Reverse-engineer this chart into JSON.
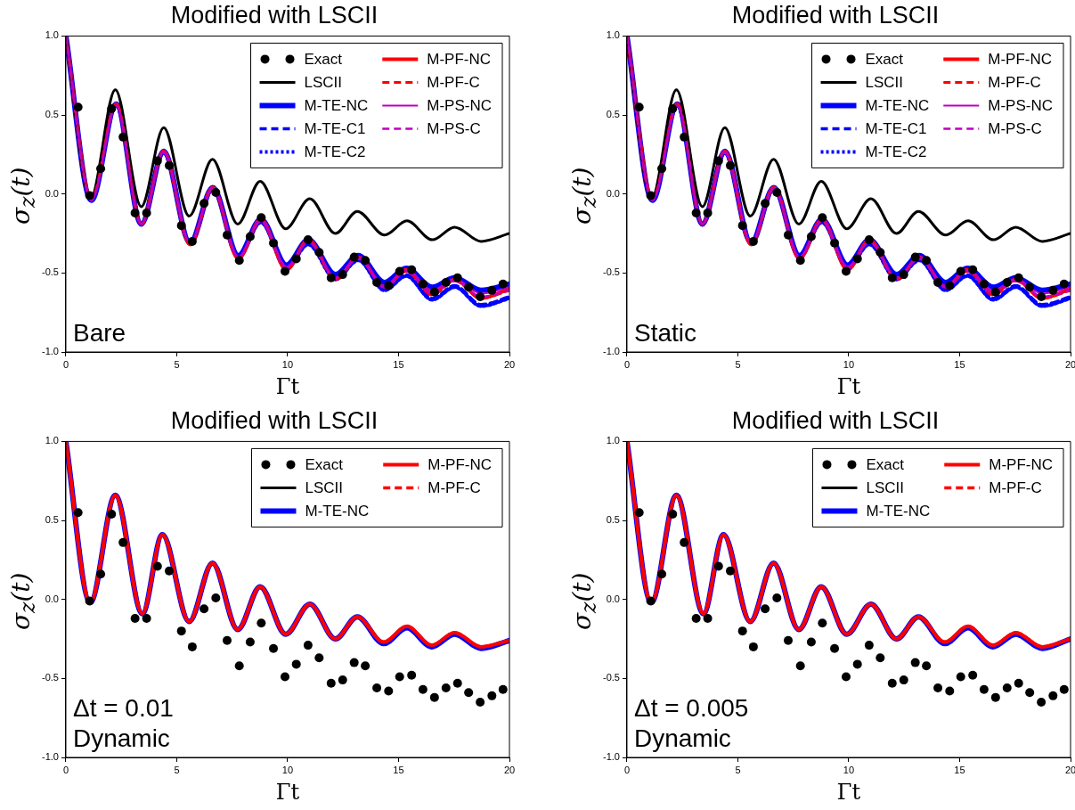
{
  "chart_data": [
    {
      "type": "line",
      "title": "Modified with LSCII",
      "xlabel": "Γt",
      "ylabel": "σ$_{z}$(t)",
      "xlim": [
        0,
        20
      ],
      "ylim": [
        -1,
        1
      ],
      "xticks": [
        0,
        5,
        10,
        15,
        20
      ],
      "yticks": [
        {
          "value": -1,
          "label": "-1.0"
        },
        {
          "value": -0.5,
          "label": "-0.5"
        },
        {
          "value": 0,
          "label": "0.0"
        },
        {
          "value": 0.5,
          "label": "0.5"
        },
        {
          "value": 1,
          "label": "1.0"
        }
      ],
      "grid": false,
      "legend": "top right",
      "annotations": [
        "Bare"
      ],
      "series": [
        {
          "name": "Exact",
          "type": "scatter",
          "marker": "circle",
          "color": "#000000",
          "x": [
            0.55,
            1.07,
            1.57,
            2.06,
            2.58,
            3.12,
            3.64,
            4.13,
            4.66,
            5.21,
            5.7,
            6.23,
            6.76,
            7.27,
            7.82,
            8.31,
            8.81,
            9.36,
            9.88,
            10.39,
            10.92,
            11.42,
            11.96,
            12.48,
            13.0,
            13.5,
            14.02,
            14.55,
            15.05,
            15.59,
            16.1,
            16.62,
            17.14,
            17.66,
            18.16,
            18.68,
            19.21,
            19.71
          ],
          "values": [
            0.55,
            -0.01,
            0.16,
            0.54,
            0.36,
            -0.12,
            -0.12,
            0.21,
            0.18,
            -0.2,
            -0.3,
            -0.06,
            0.01,
            -0.26,
            -0.42,
            -0.27,
            -0.15,
            -0.31,
            -0.49,
            -0.41,
            -0.29,
            -0.37,
            -0.53,
            -0.51,
            -0.4,
            -0.42,
            -0.56,
            -0.58,
            -0.49,
            -0.48,
            -0.57,
            -0.62,
            -0.56,
            -0.53,
            -0.59,
            -0.65,
            -0.61,
            -0.57
          ]
        },
        {
          "name": "LSCII",
          "color": "#000000",
          "line_style": "solid",
          "x": [
            0,
            1.11,
            2.23,
            3.4,
            4.41,
            5.56,
            6.61,
            7.75,
            8.76,
            9.91,
            11.0,
            12.15,
            13.14,
            14.37,
            15.38,
            16.52,
            17.53,
            18.72,
            20
          ],
          "values": [
            1.0,
            -0.03,
            0.66,
            -0.08,
            0.42,
            -0.14,
            0.22,
            -0.19,
            0.08,
            -0.22,
            -0.03,
            -0.25,
            -0.11,
            -0.26,
            -0.17,
            -0.29,
            -0.21,
            -0.3,
            -0.25
          ]
        },
        {
          "name": "M-TE-NC",
          "color": "#0000ff",
          "line_style": "solid",
          "x": [
            0,
            1.15,
            2.27,
            3.4,
            4.41,
            5.6,
            6.62,
            7.78,
            8.79,
            9.95,
            10.93,
            12.16,
            13.18,
            14.37,
            15.35,
            16.52,
            17.53,
            18.72,
            20
          ],
          "values": [
            1.0,
            -0.04,
            0.57,
            -0.19,
            0.27,
            -0.31,
            0.04,
            -0.39,
            -0.16,
            -0.45,
            -0.29,
            -0.51,
            -0.39,
            -0.56,
            -0.47,
            -0.59,
            -0.53,
            -0.61,
            -0.57
          ]
        },
        {
          "name": "M-TE-C1",
          "color": "#0000ff",
          "line_style": "dashed",
          "x": [
            0,
            1.15,
            2.27,
            3.4,
            4.41,
            5.6,
            6.62,
            7.78,
            8.79,
            9.95,
            10.93,
            12.16,
            13.18,
            14.37,
            15.35,
            16.52,
            17.53,
            18.72,
            20
          ],
          "values": [
            1.0,
            -0.04,
            0.56,
            -0.19,
            0.26,
            -0.31,
            0.03,
            -0.4,
            -0.17,
            -0.47,
            -0.31,
            -0.54,
            -0.41,
            -0.6,
            -0.51,
            -0.66,
            -0.58,
            -0.7,
            -0.65
          ]
        },
        {
          "name": "M-TE-C2",
          "color": "#0000ff",
          "line_style": "dotted",
          "x": [
            0,
            1.15,
            2.27,
            3.4,
            4.41,
            5.6,
            6.62,
            7.78,
            8.79,
            9.95,
            10.93,
            12.16,
            13.18,
            14.37,
            15.35,
            16.52,
            17.53,
            18.72,
            20
          ],
          "values": [
            1.0,
            -0.04,
            0.56,
            -0.19,
            0.26,
            -0.31,
            0.03,
            -0.4,
            -0.18,
            -0.47,
            -0.32,
            -0.54,
            -0.42,
            -0.61,
            -0.52,
            -0.67,
            -0.59,
            -0.71,
            -0.66
          ]
        },
        {
          "name": "M-PF-NC",
          "color": "#ff0000",
          "line_style": "solid",
          "x": [
            0,
            1.15,
            2.27,
            3.4,
            4.41,
            5.6,
            6.62,
            7.78,
            8.79,
            9.95,
            10.93,
            12.16,
            13.18,
            14.37,
            15.35,
            16.52,
            17.53,
            18.72,
            20
          ],
          "values": [
            1.0,
            -0.03,
            0.57,
            -0.19,
            0.27,
            -0.32,
            0.04,
            -0.41,
            -0.16,
            -0.48,
            -0.29,
            -0.54,
            -0.4,
            -0.59,
            -0.48,
            -0.63,
            -0.54,
            -0.66,
            -0.6
          ]
        },
        {
          "name": "M-PF-C",
          "color": "#ff0000",
          "line_style": "dashed",
          "x": [
            0,
            1.15,
            2.27,
            3.4,
            4.41,
            5.6,
            6.62,
            7.78,
            8.79,
            9.95,
            10.93,
            12.16,
            13.18,
            14.37,
            15.35,
            16.52,
            17.53,
            18.72,
            20
          ],
          "values": [
            1.0,
            -0.03,
            0.57,
            -0.19,
            0.27,
            -0.32,
            0.04,
            -0.41,
            -0.17,
            -0.48,
            -0.3,
            -0.54,
            -0.4,
            -0.59,
            -0.49,
            -0.64,
            -0.55,
            -0.66,
            -0.61
          ]
        },
        {
          "name": "M-PS-NC",
          "color": "#bf00bf",
          "line_style": "solid",
          "x": [
            0,
            1.15,
            2.27,
            3.4,
            4.41,
            5.6,
            6.62,
            7.78,
            8.79,
            9.95,
            10.93,
            12.16,
            13.18,
            14.37,
            15.35,
            16.52,
            17.53,
            18.72,
            20
          ],
          "values": [
            1.0,
            -0.04,
            0.56,
            -0.19,
            0.27,
            -0.31,
            0.04,
            -0.4,
            -0.16,
            -0.46,
            -0.3,
            -0.53,
            -0.4,
            -0.58,
            -0.48,
            -0.61,
            -0.54,
            -0.63,
            -0.59
          ]
        },
        {
          "name": "M-PS-C",
          "color": "#bf00bf",
          "line_style": "dashed",
          "x": [
            0,
            1.15,
            2.27,
            3.4,
            4.41,
            5.6,
            6.62,
            7.78,
            8.79,
            9.95,
            10.93,
            12.16,
            13.18,
            14.37,
            15.35,
            16.52,
            17.53,
            18.72,
            20
          ],
          "values": [
            1.0,
            -0.04,
            0.56,
            -0.19,
            0.26,
            -0.31,
            0.03,
            -0.4,
            -0.17,
            -0.47,
            -0.3,
            -0.53,
            -0.41,
            -0.59,
            -0.49,
            -0.63,
            -0.55,
            -0.65,
            -0.61
          ]
        }
      ]
    },
    {
      "type": "line",
      "title": "Modified with LSCII",
      "xlabel": "Γt",
      "ylabel": "σ$_{z}$(t)",
      "xlim": [
        0,
        20
      ],
      "ylim": [
        -1,
        1
      ],
      "xticks": [
        0,
        5,
        10,
        15,
        20
      ],
      "yticks": [
        {
          "value": -1,
          "label": "-1.0"
        },
        {
          "value": -0.5,
          "label": "-0.5"
        },
        {
          "value": 0,
          "label": "0.0"
        },
        {
          "value": 0.5,
          "label": "0.5"
        },
        {
          "value": 1,
          "label": "1.0"
        }
      ],
      "grid": false,
      "legend": "top right",
      "annotations": [
        "Static"
      ],
      "series": [
        {
          "name": "Exact",
          "type": "scatter",
          "marker": "circle",
          "color": "#000000",
          "x": [
            0.55,
            1.07,
            1.57,
            2.06,
            2.58,
            3.12,
            3.64,
            4.13,
            4.66,
            5.21,
            5.7,
            6.23,
            6.76,
            7.27,
            7.82,
            8.31,
            8.81,
            9.36,
            9.88,
            10.39,
            10.92,
            11.42,
            11.96,
            12.48,
            13.0,
            13.5,
            14.02,
            14.55,
            15.05,
            15.59,
            16.1,
            16.62,
            17.14,
            17.66,
            18.16,
            18.68,
            19.21,
            19.71
          ],
          "values": [
            0.55,
            -0.01,
            0.16,
            0.54,
            0.36,
            -0.12,
            -0.12,
            0.21,
            0.18,
            -0.2,
            -0.3,
            -0.06,
            0.01,
            -0.26,
            -0.42,
            -0.27,
            -0.15,
            -0.31,
            -0.49,
            -0.41,
            -0.29,
            -0.37,
            -0.53,
            -0.51,
            -0.4,
            -0.42,
            -0.56,
            -0.58,
            -0.49,
            -0.48,
            -0.57,
            -0.62,
            -0.56,
            -0.53,
            -0.59,
            -0.65,
            -0.61,
            -0.57
          ]
        },
        {
          "name": "LSCII",
          "color": "#000000",
          "line_style": "solid",
          "x": [
            0,
            1.11,
            2.23,
            3.4,
            4.41,
            5.56,
            6.61,
            7.75,
            8.76,
            9.91,
            11.0,
            12.15,
            13.14,
            14.37,
            15.38,
            16.52,
            17.53,
            18.72,
            20
          ],
          "values": [
            1.0,
            -0.03,
            0.66,
            -0.08,
            0.42,
            -0.14,
            0.22,
            -0.19,
            0.08,
            -0.22,
            -0.03,
            -0.25,
            -0.11,
            -0.26,
            -0.17,
            -0.29,
            -0.21,
            -0.3,
            -0.25
          ]
        },
        {
          "name": "M-TE-NC",
          "color": "#0000ff",
          "line_style": "solid",
          "x": [
            0,
            1.15,
            2.27,
            3.4,
            4.41,
            5.6,
            6.62,
            7.78,
            8.79,
            9.95,
            10.93,
            12.16,
            13.18,
            14.37,
            15.35,
            16.52,
            17.53,
            18.72,
            20
          ],
          "values": [
            1.0,
            -0.04,
            0.57,
            -0.19,
            0.27,
            -0.31,
            0.04,
            -0.39,
            -0.16,
            -0.45,
            -0.29,
            -0.51,
            -0.39,
            -0.56,
            -0.47,
            -0.59,
            -0.53,
            -0.61,
            -0.57
          ]
        },
        {
          "name": "M-TE-C1",
          "color": "#0000ff",
          "line_style": "dashed",
          "x": [
            0,
            1.15,
            2.27,
            3.4,
            4.41,
            5.6,
            6.62,
            7.78,
            8.79,
            9.95,
            10.93,
            12.16,
            13.18,
            14.37,
            15.35,
            16.52,
            17.53,
            18.72,
            20
          ],
          "values": [
            1.0,
            -0.04,
            0.56,
            -0.19,
            0.26,
            -0.31,
            0.03,
            -0.4,
            -0.17,
            -0.47,
            -0.31,
            -0.54,
            -0.41,
            -0.6,
            -0.51,
            -0.66,
            -0.58,
            -0.7,
            -0.65
          ]
        },
        {
          "name": "M-TE-C2",
          "color": "#0000ff",
          "line_style": "dotted",
          "x": [
            0,
            1.15,
            2.27,
            3.4,
            4.41,
            5.6,
            6.62,
            7.78,
            8.79,
            9.95,
            10.93,
            12.16,
            13.18,
            14.37,
            15.35,
            16.52,
            17.53,
            18.72,
            20
          ],
          "values": [
            1.0,
            -0.04,
            0.56,
            -0.19,
            0.26,
            -0.31,
            0.03,
            -0.4,
            -0.18,
            -0.47,
            -0.32,
            -0.54,
            -0.42,
            -0.61,
            -0.52,
            -0.67,
            -0.59,
            -0.71,
            -0.66
          ]
        },
        {
          "name": "M-PF-NC",
          "color": "#ff0000",
          "line_style": "solid",
          "x": [
            0,
            1.15,
            2.27,
            3.4,
            4.41,
            5.6,
            6.62,
            7.78,
            8.79,
            9.95,
            10.93,
            12.16,
            13.18,
            14.37,
            15.35,
            16.52,
            17.53,
            18.72,
            20
          ],
          "values": [
            1.0,
            -0.03,
            0.57,
            -0.19,
            0.27,
            -0.32,
            0.04,
            -0.41,
            -0.16,
            -0.48,
            -0.29,
            -0.54,
            -0.4,
            -0.59,
            -0.48,
            -0.63,
            -0.54,
            -0.66,
            -0.6
          ]
        },
        {
          "name": "M-PF-C",
          "color": "#ff0000",
          "line_style": "dashed",
          "x": [
            0,
            1.15,
            2.27,
            3.4,
            4.41,
            5.6,
            6.62,
            7.78,
            8.79,
            9.95,
            10.93,
            12.16,
            13.18,
            14.37,
            15.35,
            16.52,
            17.53,
            18.72,
            20
          ],
          "values": [
            1.0,
            -0.03,
            0.57,
            -0.19,
            0.27,
            -0.32,
            0.04,
            -0.41,
            -0.17,
            -0.48,
            -0.3,
            -0.54,
            -0.4,
            -0.59,
            -0.49,
            -0.64,
            -0.55,
            -0.66,
            -0.61
          ]
        },
        {
          "name": "M-PS-NC",
          "color": "#bf00bf",
          "line_style": "solid",
          "x": [
            0,
            1.15,
            2.27,
            3.4,
            4.41,
            5.6,
            6.62,
            7.78,
            8.79,
            9.95,
            10.93,
            12.16,
            13.18,
            14.37,
            15.35,
            16.52,
            17.53,
            18.72,
            20
          ],
          "values": [
            1.0,
            -0.04,
            0.56,
            -0.19,
            0.27,
            -0.31,
            0.04,
            -0.4,
            -0.16,
            -0.46,
            -0.3,
            -0.53,
            -0.4,
            -0.58,
            -0.48,
            -0.61,
            -0.54,
            -0.63,
            -0.59
          ]
        },
        {
          "name": "M-PS-C",
          "color": "#bf00bf",
          "line_style": "dashed",
          "x": [
            0,
            1.15,
            2.27,
            3.4,
            4.41,
            5.6,
            6.62,
            7.78,
            8.79,
            9.95,
            10.93,
            12.16,
            13.18,
            14.37,
            15.35,
            16.52,
            17.53,
            18.72,
            20
          ],
          "values": [
            1.0,
            -0.04,
            0.56,
            -0.19,
            0.26,
            -0.31,
            0.03,
            -0.4,
            -0.17,
            -0.47,
            -0.3,
            -0.53,
            -0.41,
            -0.59,
            -0.49,
            -0.63,
            -0.55,
            -0.65,
            -0.61
          ]
        }
      ]
    },
    {
      "type": "line",
      "title": "Modified with LSCII",
      "xlabel": "Γt",
      "ylabel": "σ$_{z}$(t)",
      "xlim": [
        0,
        20
      ],
      "ylim": [
        -1,
        1
      ],
      "xticks": [
        0,
        5,
        10,
        15,
        20
      ],
      "yticks": [
        {
          "value": -1,
          "label": "-1.0"
        },
        {
          "value": -0.5,
          "label": "-0.5"
        },
        {
          "value": 0,
          "label": "0.0"
        },
        {
          "value": 0.5,
          "label": "0.5"
        },
        {
          "value": 1,
          "label": "1.0"
        }
      ],
      "grid": false,
      "legend": "top right",
      "annotations": [
        "Δt = 0.01",
        "Dynamic"
      ],
      "series": [
        {
          "name": "Exact",
          "type": "scatter",
          "marker": "circle",
          "color": "#000000",
          "x": [
            0.55,
            1.07,
            1.57,
            2.06,
            2.58,
            3.12,
            3.64,
            4.13,
            4.66,
            5.21,
            5.7,
            6.23,
            6.76,
            7.27,
            7.82,
            8.31,
            8.81,
            9.36,
            9.88,
            10.39,
            10.92,
            11.42,
            11.96,
            12.48,
            13.0,
            13.5,
            14.02,
            14.55,
            15.05,
            15.59,
            16.1,
            16.62,
            17.14,
            17.66,
            18.16,
            18.68,
            19.21,
            19.71
          ],
          "values": [
            0.55,
            -0.01,
            0.16,
            0.54,
            0.36,
            -0.12,
            -0.12,
            0.21,
            0.18,
            -0.2,
            -0.3,
            -0.06,
            0.01,
            -0.26,
            -0.42,
            -0.27,
            -0.15,
            -0.31,
            -0.49,
            -0.41,
            -0.29,
            -0.37,
            -0.53,
            -0.51,
            -0.4,
            -0.42,
            -0.56,
            -0.58,
            -0.49,
            -0.48,
            -0.57,
            -0.62,
            -0.56,
            -0.53,
            -0.59,
            -0.65,
            -0.61,
            -0.57
          ]
        },
        {
          "name": "LSCII",
          "color": "#000000",
          "line_style": "solid"
        },
        {
          "name": "M-TE-NC",
          "color": "#0000ff",
          "line_style": "solid",
          "x": [
            0,
            1.1,
            2.23,
            3.45,
            4.35,
            5.56,
            6.61,
            7.75,
            8.76,
            9.91,
            11.0,
            12.15,
            13.14,
            14.33,
            15.38,
            16.5,
            17.53,
            18.72,
            20
          ],
          "values": [
            1.0,
            -0.02,
            0.66,
            -0.09,
            0.41,
            -0.14,
            0.23,
            -0.19,
            0.08,
            -0.22,
            -0.03,
            -0.25,
            -0.11,
            -0.28,
            -0.18,
            -0.3,
            -0.22,
            -0.31,
            -0.26
          ]
        },
        {
          "name": "M-PF-NC",
          "color": "#ff0000",
          "line_style": "solid",
          "x": [
            0,
            1.1,
            2.23,
            3.45,
            4.35,
            5.56,
            6.61,
            7.75,
            8.76,
            9.91,
            11.0,
            12.15,
            13.14,
            14.33,
            15.38,
            16.5,
            17.53,
            18.72,
            20
          ],
          "values": [
            1.0,
            -0.02,
            0.66,
            -0.09,
            0.41,
            -0.14,
            0.23,
            -0.19,
            0.08,
            -0.22,
            -0.03,
            -0.25,
            -0.11,
            -0.27,
            -0.17,
            -0.29,
            -0.21,
            -0.3,
            -0.26
          ]
        },
        {
          "name": "M-PF-C",
          "color": "#ff0000",
          "line_style": "dashed",
          "x": [
            0,
            1.1,
            2.23,
            3.45,
            4.35,
            5.56,
            6.61,
            7.75,
            8.76,
            9.91,
            11.0,
            12.15,
            13.14,
            14.33,
            15.38,
            16.5,
            17.53,
            18.72,
            20
          ],
          "values": [
            1.0,
            -0.02,
            0.66,
            -0.09,
            0.41,
            -0.14,
            0.23,
            -0.19,
            0.08,
            -0.22,
            -0.03,
            -0.25,
            -0.11,
            -0.27,
            -0.17,
            -0.29,
            -0.21,
            -0.3,
            -0.26
          ]
        }
      ]
    },
    {
      "type": "line",
      "title": "Modified with LSCII",
      "xlabel": "Γt",
      "ylabel": "σ$_{z}$(t)",
      "xlim": [
        0,
        20
      ],
      "ylim": [
        -1,
        1
      ],
      "xticks": [
        0,
        5,
        10,
        15,
        20
      ],
      "yticks": [
        {
          "value": -1,
          "label": "-1.0"
        },
        {
          "value": -0.5,
          "label": "-0.5"
        },
        {
          "value": 0,
          "label": "0.0"
        },
        {
          "value": 0.5,
          "label": "0.5"
        },
        {
          "value": 1,
          "label": "1.0"
        }
      ],
      "grid": false,
      "legend": "top right",
      "annotations": [
        "Δt = 0.005",
        "Dynamic"
      ],
      "series": [
        {
          "name": "Exact",
          "type": "scatter",
          "marker": "circle",
          "color": "#000000",
          "x": [
            0.55,
            1.07,
            1.57,
            2.06,
            2.58,
            3.12,
            3.64,
            4.13,
            4.66,
            5.21,
            5.7,
            6.23,
            6.76,
            7.27,
            7.82,
            8.31,
            8.81,
            9.36,
            9.88,
            10.39,
            10.92,
            11.42,
            11.96,
            12.48,
            13.0,
            13.5,
            14.02,
            14.55,
            15.05,
            15.59,
            16.1,
            16.62,
            17.14,
            17.66,
            18.16,
            18.68,
            19.21,
            19.71
          ],
          "values": [
            0.55,
            -0.01,
            0.16,
            0.54,
            0.36,
            -0.12,
            -0.12,
            0.21,
            0.18,
            -0.2,
            -0.3,
            -0.06,
            0.01,
            -0.26,
            -0.42,
            -0.27,
            -0.15,
            -0.31,
            -0.49,
            -0.41,
            -0.29,
            -0.37,
            -0.53,
            -0.51,
            -0.4,
            -0.42,
            -0.56,
            -0.58,
            -0.49,
            -0.48,
            -0.57,
            -0.62,
            -0.56,
            -0.53,
            -0.59,
            -0.65,
            -0.61,
            -0.57
          ]
        },
        {
          "name": "LSCII",
          "color": "#000000",
          "line_style": "solid"
        },
        {
          "name": "M-TE-NC",
          "color": "#0000ff",
          "line_style": "solid",
          "x": [
            0,
            1.1,
            2.23,
            3.45,
            4.35,
            5.56,
            6.61,
            7.75,
            8.76,
            9.91,
            11.0,
            12.15,
            13.14,
            14.33,
            15.38,
            16.5,
            17.53,
            18.72,
            20
          ],
          "values": [
            1.0,
            -0.02,
            0.66,
            -0.09,
            0.41,
            -0.14,
            0.23,
            -0.19,
            0.08,
            -0.22,
            -0.03,
            -0.25,
            -0.11,
            -0.28,
            -0.18,
            -0.3,
            -0.22,
            -0.31,
            -0.25
          ]
        },
        {
          "name": "M-PF-NC",
          "color": "#ff0000",
          "line_style": "solid",
          "x": [
            0,
            1.1,
            2.23,
            3.45,
            4.35,
            5.56,
            6.61,
            7.75,
            8.76,
            9.91,
            11.0,
            12.15,
            13.14,
            14.33,
            15.38,
            16.5,
            17.53,
            18.72,
            20
          ],
          "values": [
            1.0,
            -0.02,
            0.66,
            -0.09,
            0.41,
            -0.14,
            0.23,
            -0.19,
            0.08,
            -0.22,
            -0.03,
            -0.25,
            -0.11,
            -0.27,
            -0.17,
            -0.29,
            -0.21,
            -0.3,
            -0.25
          ]
        },
        {
          "name": "M-PF-C",
          "color": "#ff0000",
          "line_style": "dashed",
          "x": [
            0,
            1.1,
            2.23,
            3.45,
            4.35,
            5.56,
            6.61,
            7.75,
            8.76,
            9.91,
            11.0,
            12.15,
            13.14,
            14.33,
            15.38,
            16.5,
            17.53,
            18.72,
            20
          ],
          "values": [
            1.0,
            -0.02,
            0.66,
            -0.09,
            0.41,
            -0.14,
            0.23,
            -0.19,
            0.08,
            -0.22,
            -0.03,
            -0.25,
            -0.11,
            -0.27,
            -0.17,
            -0.29,
            -0.21,
            -0.3,
            -0.25
          ]
        }
      ]
    }
  ]
}
